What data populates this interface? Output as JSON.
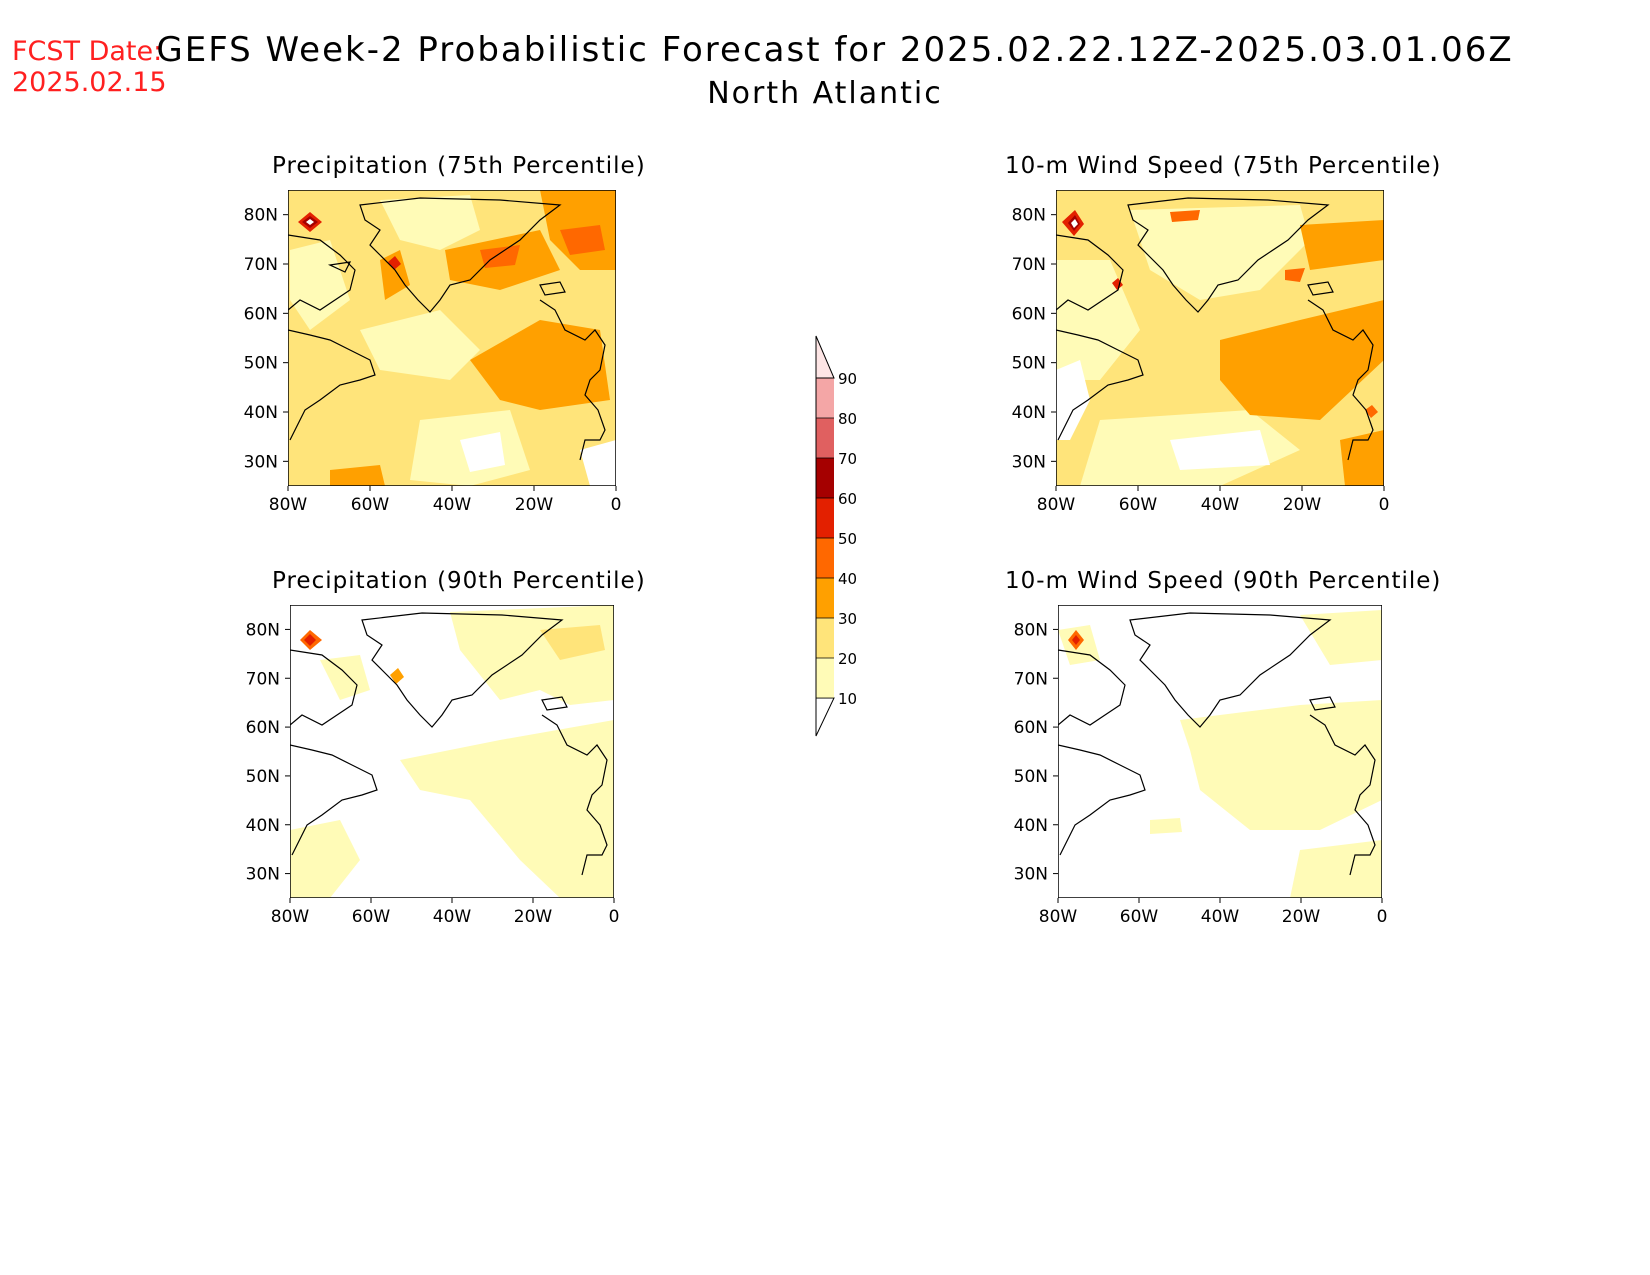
{
  "header": {
    "fcst_label": "FCST Date:",
    "fcst_date": "2025.02.15",
    "title": "GEFS Week-2 Probabilistic Forecast for 2025.02.22.12Z-2025.03.01.06Z",
    "subtitle": "North Atlantic"
  },
  "panels": [
    {
      "id": "precip75",
      "title": "Precipitation (75th Percentile)"
    },
    {
      "id": "wind75",
      "title": "10-m Wind Speed (75th Percentile)"
    },
    {
      "id": "precip90",
      "title": "Precipitation (90th Percentile)"
    },
    {
      "id": "wind90",
      "title": "10-m Wind Speed (90th Percentile)"
    }
  ],
  "axes": {
    "lat_ticks": [
      "80N",
      "70N",
      "60N",
      "50N",
      "40N",
      "30N"
    ],
    "lon_ticks": [
      "80W",
      "60W",
      "40W",
      "20W",
      "0"
    ],
    "lat_range": [
      25,
      85
    ],
    "lon_range": [
      -80,
      0
    ]
  },
  "colorbar": {
    "levels": [
      "10",
      "20",
      "30",
      "40",
      "50",
      "60",
      "70",
      "80",
      "90"
    ],
    "colors": [
      "#fffbb7",
      "#ffe47a",
      "#ffa000",
      "#ff6800",
      "#e32000",
      "#a50000",
      "#e06060",
      "#f4a6a6",
      "#fde5e5"
    ]
  }
}
